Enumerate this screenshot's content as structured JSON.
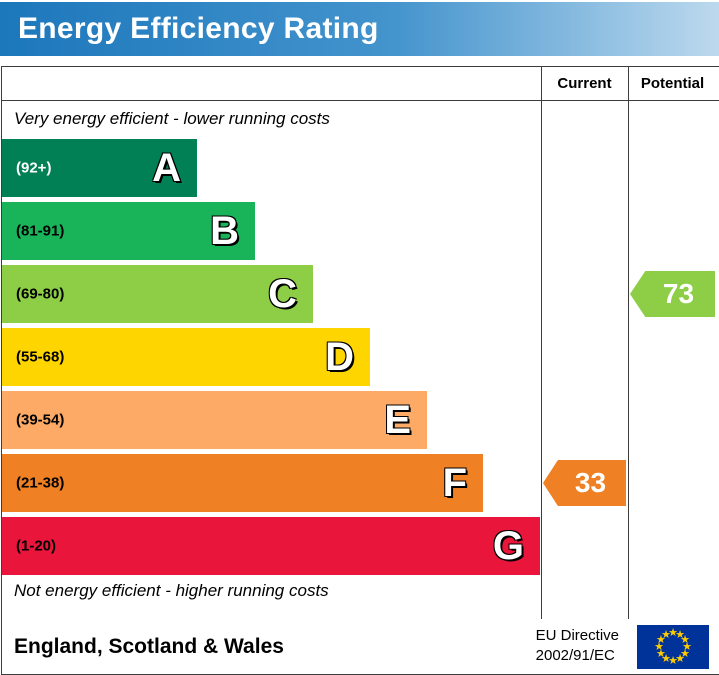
{
  "title": "Energy Efficiency Rating",
  "columns": {
    "current": "Current",
    "potential": "Potential"
  },
  "top_note": "Very energy efficient - lower running costs",
  "bottom_note": "Not energy efficient - higher running costs",
  "bands": [
    {
      "letter": "A",
      "range": "(92+)",
      "color": "#008054",
      "label_color": "#ffffff"
    },
    {
      "letter": "B",
      "range": "(81-91)",
      "color": "#19b459",
      "label_color": "#000000"
    },
    {
      "letter": "C",
      "range": "(69-80)",
      "color": "#8dce46",
      "label_color": "#000000"
    },
    {
      "letter": "D",
      "range": "(55-68)",
      "color": "#ffd500",
      "label_color": "#000000"
    },
    {
      "letter": "E",
      "range": "(39-54)",
      "color": "#fcaa65",
      "label_color": "#000000"
    },
    {
      "letter": "F",
      "range": "(21-38)",
      "color": "#ef8023",
      "label_color": "#000000"
    },
    {
      "letter": "G",
      "range": "(1-20)",
      "color": "#e9153b",
      "label_color": "#000000"
    }
  ],
  "current": {
    "value": "33",
    "band": "F",
    "color": "#ef8023"
  },
  "potential": {
    "value": "73",
    "band": "C",
    "color": "#8dce46"
  },
  "footer": {
    "region": "England, Scotland & Wales",
    "directive_line1": "EU Directive",
    "directive_line2": "2002/91/EC"
  },
  "flag_colors": {
    "background": "#003399",
    "stars": "#ffcc00"
  },
  "chart_data": {
    "type": "bar",
    "title": "Energy Efficiency Rating",
    "categories": [
      "A",
      "B",
      "C",
      "D",
      "E",
      "F",
      "G"
    ],
    "band_ranges": [
      "92+",
      "81-91",
      "69-80",
      "55-68",
      "39-54",
      "21-38",
      "1-20"
    ],
    "band_colors": [
      "#008054",
      "#19b459",
      "#8dce46",
      "#ffd500",
      "#fcaa65",
      "#ef8023",
      "#e9153b"
    ],
    "current_rating": 33,
    "current_band": "F",
    "potential_rating": 73,
    "potential_band": "C",
    "columns": [
      "Current",
      "Potential"
    ],
    "annotations": [
      "Very energy efficient - lower running costs",
      "Not energy efficient - higher running costs"
    ],
    "region": "England, Scotland & Wales",
    "directive": "EU Directive 2002/91/EC"
  }
}
